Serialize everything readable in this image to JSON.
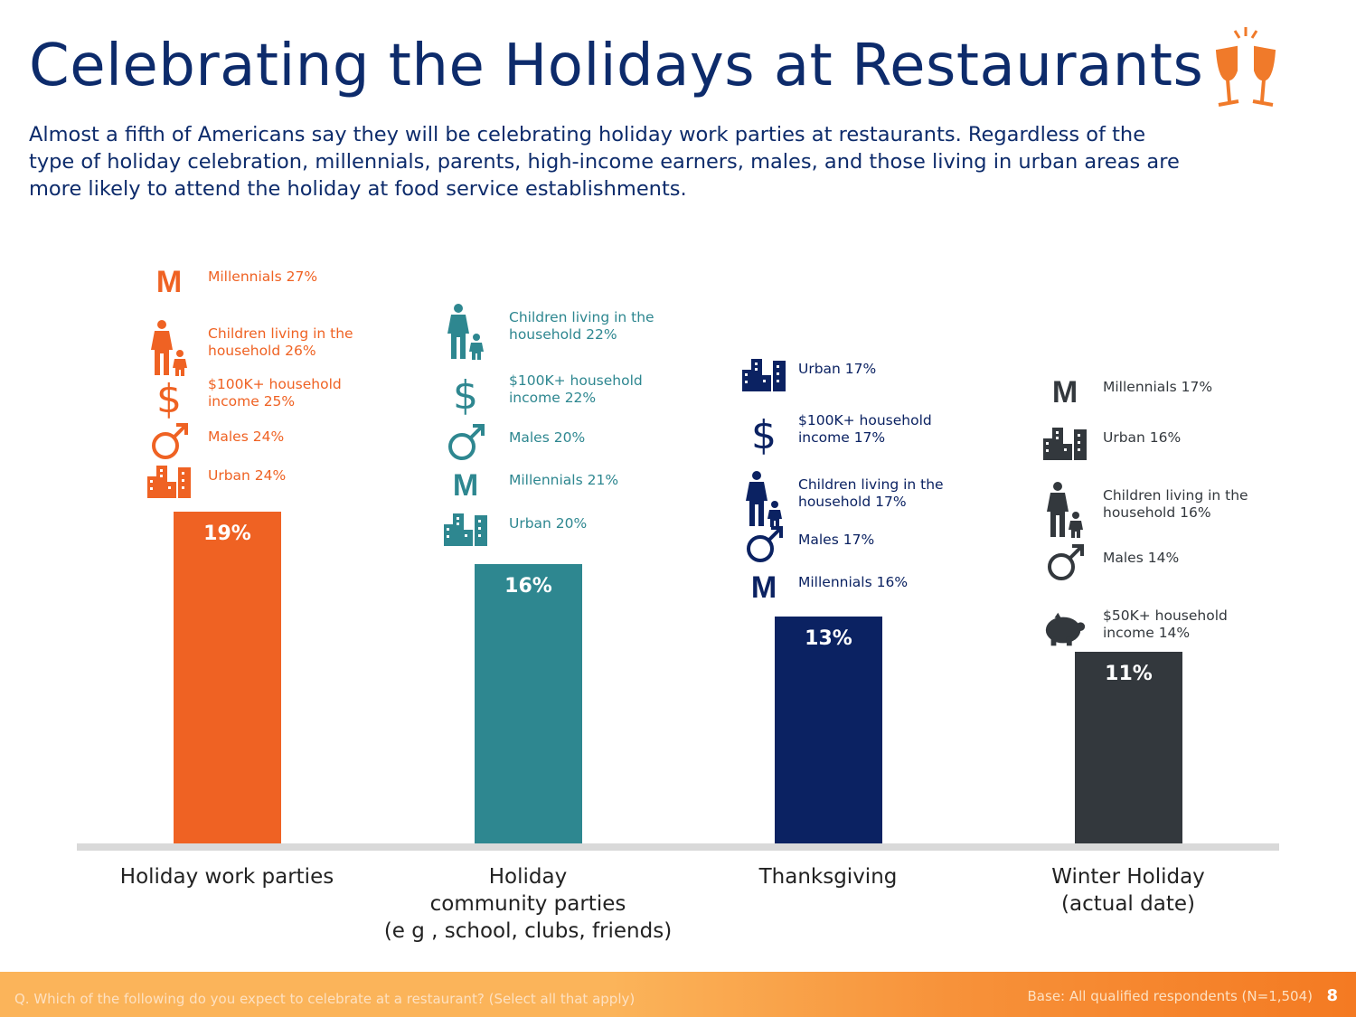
{
  "title": "Celebrating the Holidays at Restaurants",
  "subtitle": "Almost a fifth of Americans say they will be celebrating holiday work parties at restaurants. Regardless of the type of holiday celebration, millennials, parents, high-income earners, males, and those living in urban areas are more likely to attend the holiday at food service establishments.",
  "header_icon": "champagne-toast-icon",
  "chart_data": {
    "type": "bar",
    "categories": [
      "Holiday work parties",
      "Holiday\ncommunity parties\n(e g , school, clubs, friends)",
      "Thanksgiving",
      "Winter Holiday\n(actual date)"
    ],
    "values": [
      19,
      16,
      13,
      11
    ],
    "value_labels": [
      "19%",
      "16%",
      "13%",
      "11%"
    ],
    "colors": [
      "#ef6223",
      "#2e8790",
      "#0b2262",
      "#33383d"
    ],
    "ylim": [
      0,
      19
    ],
    "annotations": [
      [
        {
          "icon": "millennial-m-icon",
          "text": "Millennials 27%"
        },
        {
          "icon": "parent-child-icon",
          "text": "Children living in the household 26%"
        },
        {
          "icon": "dollar-icon",
          "text": "$100K+ household income 25%"
        },
        {
          "icon": "male-symbol-icon",
          "text": "Males 24%"
        },
        {
          "icon": "city-buildings-icon",
          "text": "Urban 24%"
        }
      ],
      [
        {
          "icon": "parent-child-icon",
          "text": "Children living in the household 22%"
        },
        {
          "icon": "dollar-icon",
          "text": "$100K+ household income 22%"
        },
        {
          "icon": "male-symbol-icon",
          "text": "Males 20%"
        },
        {
          "icon": "millennial-m-icon",
          "text": "Millennials 21%"
        },
        {
          "icon": "city-buildings-icon",
          "text": "Urban 20%"
        }
      ],
      [
        {
          "icon": "city-buildings-icon",
          "text": "Urban 17%"
        },
        {
          "icon": "dollar-icon",
          "text": "$100K+ household income 17%"
        },
        {
          "icon": "parent-child-icon",
          "text": "Children living in the household 17%"
        },
        {
          "icon": "male-symbol-icon",
          "text": "Males 17%"
        },
        {
          "icon": "millennial-m-icon",
          "text": "Millennials 16%"
        }
      ],
      [
        {
          "icon": "millennial-m-icon",
          "text": "Millennials 17%"
        },
        {
          "icon": "city-buildings-icon",
          "text": "Urban 16%"
        },
        {
          "icon": "parent-child-icon",
          "text": "Children living in the household 16%"
        },
        {
          "icon": "male-symbol-icon",
          "text": "Males 14%"
        },
        {
          "icon": "piggy-bank-icon",
          "text": "$50K+ household income 14%"
        }
      ]
    ]
  },
  "footer": {
    "question": "Q. Which of the following do you expect to celebrate at a restaurant? (Select all that apply)",
    "base": "Base: All qualified respondents (N=1,504)",
    "page_number": "8"
  }
}
